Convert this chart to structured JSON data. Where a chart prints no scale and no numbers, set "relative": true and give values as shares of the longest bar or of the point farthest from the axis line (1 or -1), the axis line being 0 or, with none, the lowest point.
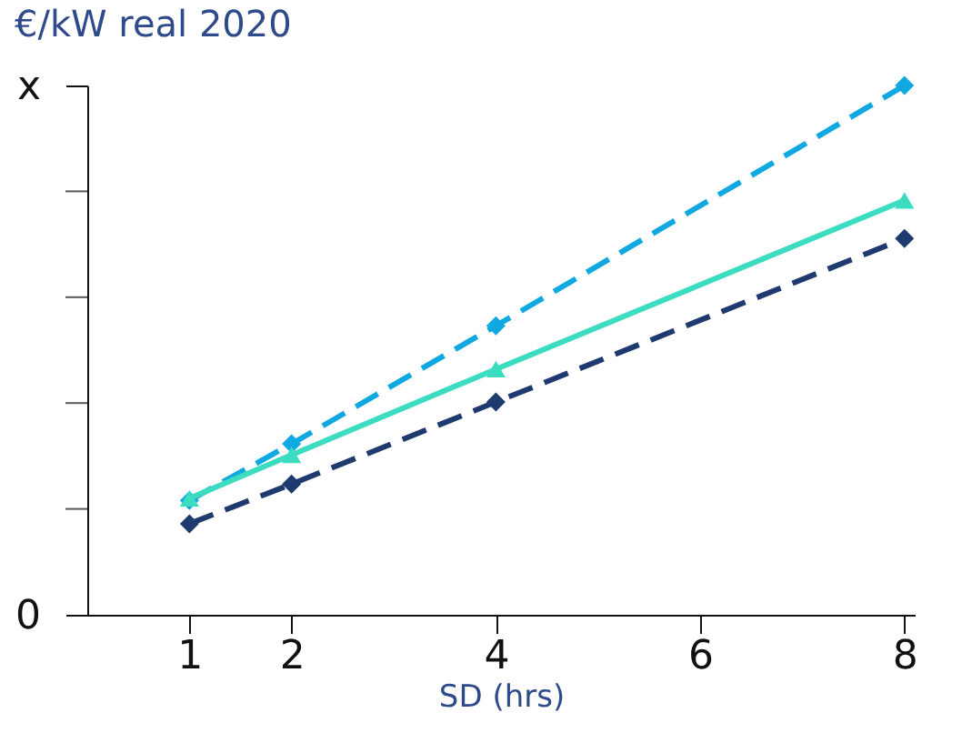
{
  "chart_data": {
    "type": "line",
    "title": "€/kW real 2020",
    "xlabel": "SD (hrs)",
    "relative": true,
    "x": [
      1,
      2,
      4,
      8
    ],
    "xlim": [
      0,
      8.1
    ],
    "xticks": [
      1,
      2,
      4,
      6,
      8
    ],
    "grid": false,
    "annotations": [
      "0",
      "x"
    ],
    "series": [
      {
        "color": "#0fa8e0",
        "values": [
          0.216,
          0.323,
          0.546,
          1.0
        ],
        "marker": "diamond",
        "line_style": "dashed"
      },
      {
        "color": "#3cdcc0",
        "values": [
          0.22,
          0.302,
          0.464,
          0.783
        ],
        "marker": "triangle",
        "line_style": "solid"
      },
      {
        "color": "#1f3a6e",
        "values": [
          0.172,
          0.247,
          0.402,
          0.711
        ],
        "marker": "diamond",
        "line_style": "dashed"
      }
    ]
  }
}
